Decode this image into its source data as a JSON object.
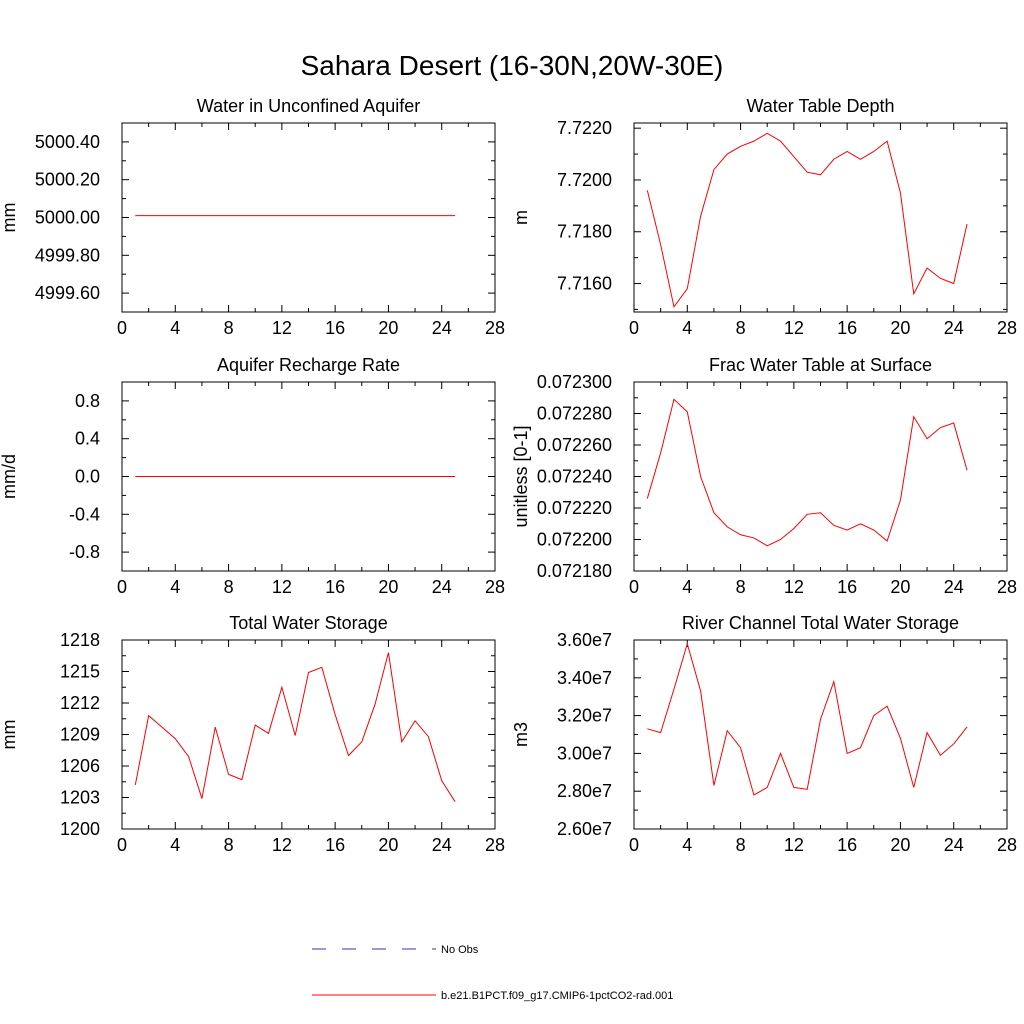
{
  "title": "Sahara Desert (16-30N,20W-30E)",
  "legend": {
    "obs_label": "No Obs",
    "model_label": "b.e21.B1PCT.f09_g17.CMIP6-1pctCO2-rad.001",
    "model_color": "#ff0000",
    "obs_color": "#3333aa"
  },
  "chart_data": [
    {
      "type": "line",
      "title": "Water in Unconfined Aquifer",
      "ylabel": "mm",
      "xlim": [
        0,
        28
      ],
      "ylim": [
        4999.5,
        5000.5
      ],
      "xticks": [
        "0",
        "4",
        "8",
        "12",
        "16",
        "20",
        "24",
        "28"
      ],
      "yticks": [
        {
          "v": 4999.6,
          "label": "4999.60"
        },
        {
          "v": 4999.8,
          "label": "4999.80"
        },
        {
          "v": 5000.0,
          "label": "5000.00"
        },
        {
          "v": 5000.2,
          "label": "5000.20"
        },
        {
          "v": 5000.4,
          "label": "5000.40"
        }
      ],
      "x": [
        1,
        2,
        3,
        4,
        5,
        6,
        7,
        8,
        9,
        10,
        11,
        12,
        13,
        14,
        15,
        16,
        17,
        18,
        19,
        20,
        21,
        22,
        23,
        24,
        25
      ],
      "y": [
        5000.01,
        5000.01,
        5000.01,
        5000.01,
        5000.01,
        5000.01,
        5000.01,
        5000.01,
        5000.01,
        5000.01,
        5000.01,
        5000.01,
        5000.01,
        5000.01,
        5000.01,
        5000.01,
        5000.01,
        5000.01,
        5000.01,
        5000.01,
        5000.01,
        5000.01,
        5000.01,
        5000.01,
        5000.01
      ]
    },
    {
      "type": "line",
      "title": "Water Table Depth",
      "ylabel": "m",
      "xlim": [
        0,
        28
      ],
      "ylim": [
        7.7149,
        7.7222
      ],
      "xticks": [
        "0",
        "4",
        "8",
        "12",
        "16",
        "20",
        "24",
        "28"
      ],
      "yticks": [
        {
          "v": 7.716,
          "label": "7.7160"
        },
        {
          "v": 7.718,
          "label": "7.7180"
        },
        {
          "v": 7.72,
          "label": "7.7200"
        },
        {
          "v": 7.722,
          "label": "7.7220"
        }
      ],
      "x": [
        1,
        2,
        3,
        4,
        5,
        6,
        7,
        8,
        9,
        10,
        11,
        12,
        13,
        14,
        15,
        16,
        17,
        18,
        19,
        20,
        21,
        22,
        23,
        24,
        25
      ],
      "y": [
        7.7196,
        7.7175,
        7.7151,
        7.7158,
        7.7186,
        7.7204,
        7.721,
        7.7213,
        7.7215,
        7.7218,
        7.7215,
        7.7209,
        7.7203,
        7.7202,
        7.7208,
        7.7211,
        7.7208,
        7.7211,
        7.7215,
        7.7195,
        7.7156,
        7.7166,
        7.7162,
        7.716,
        7.7183
      ]
    },
    {
      "type": "line",
      "title": "Aquifer Recharge Rate",
      "ylabel": "mm/d",
      "xlim": [
        0,
        28
      ],
      "ylim": [
        -1.0,
        1.0
      ],
      "xticks": [
        "0",
        "4",
        "8",
        "12",
        "16",
        "20",
        "24",
        "28"
      ],
      "yticks": [
        {
          "v": -0.8,
          "label": "-0.8"
        },
        {
          "v": -0.4,
          "label": "-0.4"
        },
        {
          "v": 0.0,
          "label": "0.0"
        },
        {
          "v": 0.4,
          "label": "0.4"
        },
        {
          "v": 0.8,
          "label": "0.8"
        }
      ],
      "x": [
        1,
        2,
        3,
        4,
        5,
        6,
        7,
        8,
        9,
        10,
        11,
        12,
        13,
        14,
        15,
        16,
        17,
        18,
        19,
        20,
        21,
        22,
        23,
        24,
        25
      ],
      "y": [
        0,
        0,
        0,
        0,
        0,
        0,
        0,
        0,
        0,
        0,
        0,
        0,
        0,
        0,
        0,
        0,
        0,
        0,
        0,
        0,
        0,
        0,
        0,
        0,
        0
      ]
    },
    {
      "type": "line",
      "title": "Frac Water Table at Surface",
      "ylabel": "unitless [0-1]",
      "xlim": [
        0,
        28
      ],
      "ylim": [
        0.07218,
        0.0723
      ],
      "xticks": [
        "0",
        "4",
        "8",
        "12",
        "16",
        "20",
        "24",
        "28"
      ],
      "yticks": [
        {
          "v": 0.07218,
          "label": "0.072180"
        },
        {
          "v": 0.0722,
          "label": "0.072200"
        },
        {
          "v": 0.07222,
          "label": "0.072220"
        },
        {
          "v": 0.07224,
          "label": "0.072240"
        },
        {
          "v": 0.07226,
          "label": "0.072260"
        },
        {
          "v": 0.07228,
          "label": "0.072280"
        },
        {
          "v": 0.0723,
          "label": "0.072300"
        }
      ],
      "x": [
        1,
        2,
        3,
        4,
        5,
        6,
        7,
        8,
        9,
        10,
        11,
        12,
        13,
        14,
        15,
        16,
        17,
        18,
        19,
        20,
        21,
        22,
        23,
        24,
        25
      ],
      "y": [
        0.072226,
        0.072255,
        0.072289,
        0.072281,
        0.07224,
        0.072217,
        0.072208,
        0.072203,
        0.072201,
        0.072196,
        0.0722,
        0.072207,
        0.072216,
        0.072217,
        0.072209,
        0.072206,
        0.07221,
        0.072206,
        0.072199,
        0.072225,
        0.072278,
        0.072264,
        0.072271,
        0.072274,
        0.072244
      ]
    },
    {
      "type": "line",
      "title": "Total Water Storage",
      "ylabel": "mm",
      "xlim": [
        0,
        28
      ],
      "ylim": [
        1200,
        1218
      ],
      "xticks": [
        "0",
        "4",
        "8",
        "12",
        "16",
        "20",
        "24",
        "28"
      ],
      "yticks": [
        {
          "v": 1200,
          "label": "1200"
        },
        {
          "v": 1203,
          "label": "1203"
        },
        {
          "v": 1206,
          "label": "1206"
        },
        {
          "v": 1209,
          "label": "1209"
        },
        {
          "v": 1212,
          "label": "1212"
        },
        {
          "v": 1215,
          "label": "1215"
        },
        {
          "v": 1218,
          "label": "1218"
        }
      ],
      "x": [
        1,
        2,
        3,
        4,
        5,
        6,
        7,
        8,
        9,
        10,
        11,
        12,
        13,
        14,
        15,
        16,
        17,
        18,
        19,
        20,
        21,
        22,
        23,
        24,
        25
      ],
      "y": [
        1204.2,
        1210.8,
        1209.7,
        1208.6,
        1206.9,
        1202.9,
        1209.7,
        1205.2,
        1204.7,
        1209.9,
        1209.1,
        1213.5,
        1208.9,
        1214.9,
        1215.4,
        1210.9,
        1207.0,
        1208.3,
        1211.9,
        1216.8,
        1208.3,
        1210.3,
        1208.8,
        1204.6,
        1202.6
      ]
    },
    {
      "type": "line",
      "title": "River Channel Total Water Storage",
      "ylabel": "m3",
      "xlim": [
        0,
        28
      ],
      "ylim": [
        26000000,
        36000000
      ],
      "xticks": [
        "0",
        "4",
        "8",
        "12",
        "16",
        "20",
        "24",
        "28"
      ],
      "yticks": [
        {
          "v": 26000000,
          "label": "2.60e7"
        },
        {
          "v": 28000000,
          "label": "2.80e7"
        },
        {
          "v": 30000000,
          "label": "3.00e7"
        },
        {
          "v": 32000000,
          "label": "3.20e7"
        },
        {
          "v": 34000000,
          "label": "3.40e7"
        },
        {
          "v": 36000000,
          "label": "3.60e7"
        }
      ],
      "x": [
        1,
        2,
        3,
        4,
        5,
        6,
        7,
        8,
        9,
        10,
        11,
        12,
        13,
        14,
        15,
        16,
        17,
        18,
        19,
        20,
        21,
        22,
        23,
        24,
        25
      ],
      "y": [
        31300000,
        31100000,
        33400000,
        35800000,
        33300000,
        28300000,
        31200000,
        30300000,
        27800000,
        28200000,
        30000000,
        28200000,
        28100000,
        31800000,
        33800000,
        30000000,
        30300000,
        32000000,
        32500000,
        30800000,
        28200000,
        31100000,
        29900000,
        30500000,
        31400000
      ]
    }
  ]
}
